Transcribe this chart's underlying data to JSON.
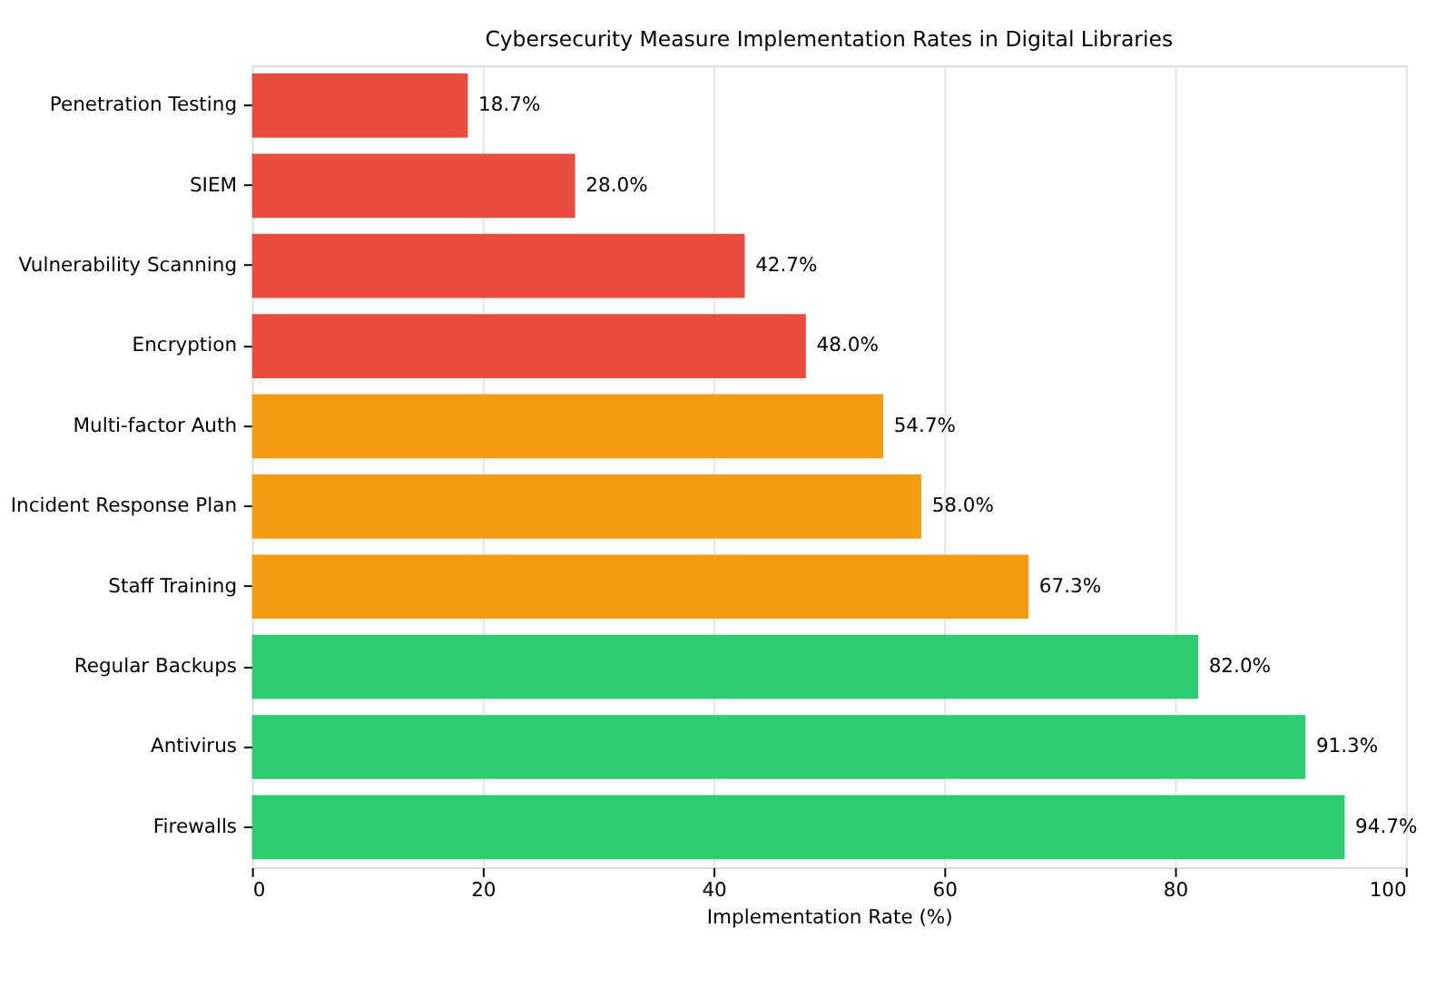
{
  "chart_data": {
    "type": "bar",
    "orientation": "horizontal",
    "title": "Cybersecurity Measure Implementation Rates in Digital Libraries",
    "xlabel": "Implementation Rate (%)",
    "categories": [
      "Penetration Testing",
      "SIEM",
      "Vulnerability Scanning",
      "Encryption",
      "Multi-factor Auth",
      "Incident Response Plan",
      "Staff Training",
      "Regular Backups",
      "Antivirus",
      "Firewalls"
    ],
    "values": [
      18.7,
      28.0,
      42.7,
      48.0,
      54.7,
      58.0,
      67.3,
      82.0,
      91.3,
      94.7
    ],
    "value_labels": [
      "18.7%",
      "28.0%",
      "42.7%",
      "48.0%",
      "54.7%",
      "58.0%",
      "67.3%",
      "82.0%",
      "91.3%",
      "94.7%"
    ],
    "colors": [
      "#e74c3c",
      "#e74c3c",
      "#e74c3c",
      "#e74c3c",
      "#f39c12",
      "#f39c12",
      "#f39c12",
      "#2ecc71",
      "#2ecc71",
      "#2ecc71"
    ],
    "xlim": [
      0,
      100
    ],
    "xticks": [
      0,
      20,
      40,
      60,
      80,
      100
    ],
    "grid": "x"
  }
}
